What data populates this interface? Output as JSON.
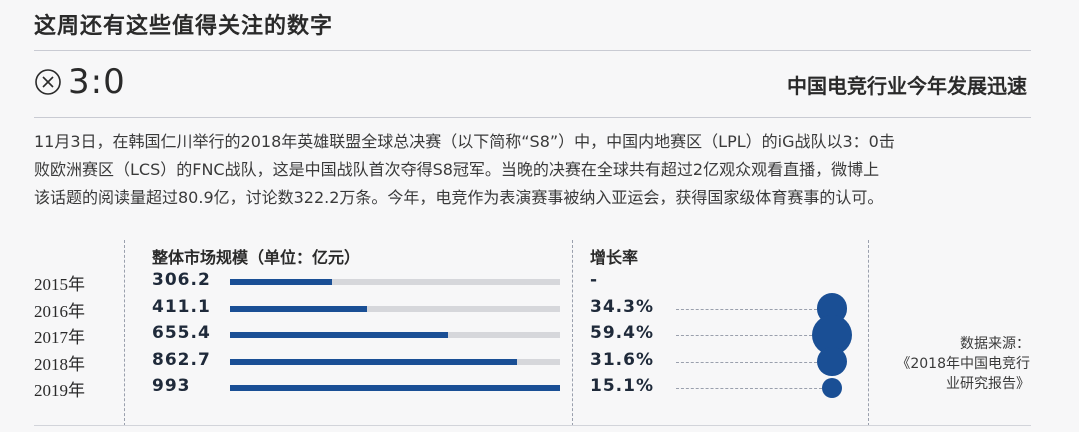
{
  "header": {
    "title": "这周还有这些值得关注的数字"
  },
  "highlight": {
    "icon": "x-circle-icon",
    "score": "3:0",
    "subtitle": "中国电竞行业今年发展迅速"
  },
  "article": {
    "line1": "11月3日，在韩国仁川举行的2018年英雄联盟全球总决赛（以下简称“S8”）中，中国内地赛区（LPL）的iG战队以3：0击",
    "line2": "败欧洲赛区（LCS）的FNC战队，这是中国战队首次夺得S8冠军。当晚的决赛在全球共有超过2亿观众观看直播，微博上",
    "line3": "该话题的阅读量超过80.9亿，讨论数322.2万条。今年，电竞作为表演赛事被纳入亚运会，获得国家级体育赛事的认可。"
  },
  "chart_data": {
    "type": "bar",
    "market_header": "整体市场规模（单位：亿元）",
    "growth_header": "增长率",
    "categories": [
      "2015年",
      "2016年",
      "2017年",
      "2018年",
      "2019年"
    ],
    "values": [
      306.2,
      411.1,
      655.4,
      862.7,
      993
    ],
    "value_labels": [
      "306.2",
      "411.1",
      "655.4",
      "862.7",
      "993"
    ],
    "growth": [
      null,
      34.3,
      59.4,
      31.6,
      15.1
    ],
    "growth_labels": [
      "-",
      "34.3%",
      "59.4%",
      "31.6%",
      "15.1%"
    ],
    "xlim": [
      0,
      993
    ],
    "colors": {
      "bar": "#1a4f95",
      "track": "#d6d7db",
      "bubble": "#1a4f95"
    }
  },
  "source": {
    "line1": "数据来源：",
    "line2": "《2018年中国电竞行",
    "line3": "业研究报告》"
  }
}
